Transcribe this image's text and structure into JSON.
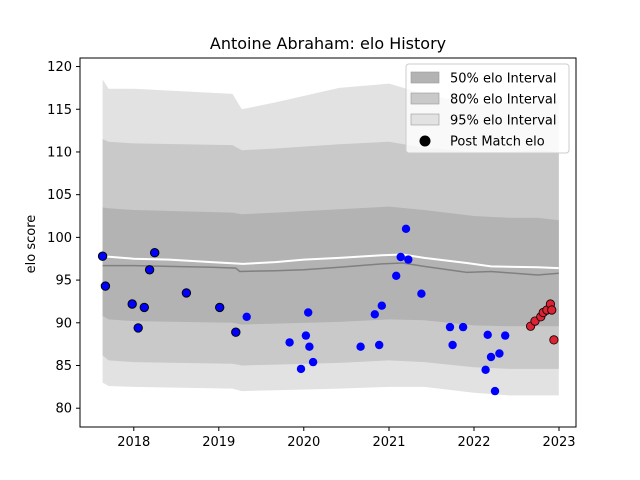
{
  "chart_data": {
    "type": "scatter",
    "title": "Antoine Abraham: elo History",
    "xlabel": "",
    "ylabel": "elo score",
    "xlim": [
      "2017-05-15",
      "2023-03-15"
    ],
    "ylim": [
      77.8,
      121.0
    ],
    "x_ticks": [
      "2018",
      "2019",
      "2020",
      "2021",
      "2022",
      "2023"
    ],
    "x_tick_dates": [
      "2018-01-01",
      "2019-01-01",
      "2020-01-01",
      "2021-01-01",
      "2022-01-01",
      "2023-01-01"
    ],
    "y_ticks": [
      80,
      85,
      90,
      95,
      100,
      105,
      110,
      115,
      120
    ],
    "grid": false,
    "legend": {
      "placement": "top-right",
      "entries": [
        {
          "label": "50% elo Interval",
          "color": "#b3b3b3"
        },
        {
          "label": "80% elo Interval",
          "color": "#c9c9c9"
        },
        {
          "label": "95% elo Interval",
          "color": "#e2e2e2"
        },
        {
          "label": "Post Match elo",
          "color": "#000000"
        }
      ]
    },
    "mean_line": {
      "color": "#ffffff",
      "points": [
        [
          "2017-08-20",
          97.8
        ],
        [
          "2018-01-01",
          97.5
        ],
        [
          "2018-06-01",
          97.4
        ],
        [
          "2018-12-01",
          97.1
        ],
        [
          "2019-04-15",
          96.9
        ],
        [
          "2019-09-01",
          97.1
        ],
        [
          "2020-01-01",
          97.4
        ],
        [
          "2020-06-01",
          97.6
        ],
        [
          "2020-12-01",
          97.9
        ],
        [
          "2021-03-01",
          98.0
        ],
        [
          "2021-06-01",
          97.6
        ],
        [
          "2021-12-01",
          97.0
        ],
        [
          "2022-03-15",
          96.6
        ],
        [
          "2022-10-01",
          96.5
        ],
        [
          "2022-12-31",
          96.4
        ]
      ]
    },
    "median_line": {
      "color": "#808080",
      "points": [
        [
          "2017-08-20",
          96.7
        ],
        [
          "2018-01-01",
          96.7
        ],
        [
          "2018-06-01",
          96.6
        ],
        [
          "2018-12-01",
          96.5
        ],
        [
          "2019-03-15",
          96.4
        ],
        [
          "2019-04-01",
          96.0
        ],
        [
          "2019-09-01",
          96.1
        ],
        [
          "2020-01-01",
          96.2
        ],
        [
          "2020-06-01",
          96.5
        ],
        [
          "2020-12-01",
          96.9
        ],
        [
          "2021-03-01",
          97.0
        ],
        [
          "2021-06-01",
          96.6
        ],
        [
          "2021-12-01",
          95.9
        ],
        [
          "2022-03-15",
          96.0
        ],
        [
          "2022-10-01",
          95.6
        ],
        [
          "2022-12-31",
          95.8
        ]
      ]
    },
    "bands": [
      {
        "name": "95% elo Interval",
        "color": "#e2e2e2",
        "x": [
          "2017-08-20",
          "2017-09-15",
          "2018-01-01",
          "2019-03-01",
          "2019-04-10",
          "2019-09-01",
          "2020-06-01",
          "2021-01-01",
          "2021-06-01",
          "2022-01-01",
          "2022-06-01",
          "2022-10-01",
          "2022-12-31"
        ],
        "upper": [
          118.5,
          117.4,
          117.4,
          116.8,
          115.0,
          115.8,
          117.5,
          118.0,
          116.8,
          115.5,
          115.8,
          116.0,
          116.0
        ],
        "lower": [
          83.0,
          82.6,
          82.5,
          82.3,
          82.0,
          82.1,
          82.3,
          82.5,
          82.5,
          81.8,
          81.5,
          81.5,
          81.5
        ]
      },
      {
        "name": "80% elo Interval",
        "color": "#c9c9c9",
        "x": [
          "2017-08-20",
          "2017-09-15",
          "2018-01-01",
          "2019-03-01",
          "2019-04-10",
          "2019-09-01",
          "2020-06-01",
          "2021-01-01",
          "2021-06-01",
          "2022-01-01",
          "2022-06-01",
          "2022-10-01",
          "2022-12-31"
        ],
        "upper": [
          111.5,
          111.2,
          111.0,
          110.8,
          110.2,
          110.4,
          110.9,
          111.2,
          110.5,
          110.0,
          110.0,
          110.2,
          110.0
        ],
        "lower": [
          86.2,
          85.6,
          85.4,
          85.2,
          85.0,
          85.1,
          85.3,
          85.6,
          85.4,
          84.8,
          84.6,
          84.6,
          84.6
        ]
      },
      {
        "name": "50% elo Interval",
        "color": "#b3b3b3",
        "x": [
          "2017-08-20",
          "2017-09-15",
          "2018-01-01",
          "2019-03-01",
          "2019-04-10",
          "2019-09-01",
          "2020-06-01",
          "2021-01-01",
          "2021-06-01",
          "2022-01-01",
          "2022-06-01",
          "2022-10-01",
          "2022-12-31"
        ],
        "upper": [
          103.5,
          103.4,
          103.2,
          102.9,
          102.7,
          102.9,
          103.3,
          103.6,
          103.2,
          102.5,
          102.3,
          102.3,
          102.0
        ],
        "lower": [
          90.8,
          90.4,
          90.2,
          90.0,
          89.8,
          89.9,
          90.1,
          90.4,
          90.3,
          89.7,
          89.6,
          89.6,
          89.6
        ]
      }
    ],
    "series": [
      {
        "name": "Post Match elo",
        "color": "#0000ff",
        "points": [
          [
            "2017-08-20",
            97.8
          ],
          [
            "2017-09-01",
            94.3
          ],
          [
            "2017-12-25",
            92.2
          ],
          [
            "2018-01-20",
            89.4
          ],
          [
            "2018-02-15",
            91.8
          ],
          [
            "2018-03-10",
            96.2
          ],
          [
            "2018-04-01",
            98.2
          ],
          [
            "2018-08-15",
            93.5
          ],
          [
            "2019-01-05",
            91.8
          ],
          [
            "2019-03-15",
            88.9
          ],
          [
            "2019-05-01",
            90.7
          ],
          [
            "2019-11-01",
            87.7
          ],
          [
            "2019-12-20",
            84.6
          ],
          [
            "2020-01-10",
            88.5
          ],
          [
            "2020-01-20",
            91.2
          ],
          [
            "2020-01-25",
            87.2
          ],
          [
            "2020-02-10",
            85.4
          ],
          [
            "2020-09-01",
            87.2
          ],
          [
            "2020-11-01",
            91.0
          ],
          [
            "2020-11-20",
            87.4
          ],
          [
            "2020-12-01",
            92.0
          ],
          [
            "2021-02-01",
            95.5
          ],
          [
            "2021-02-20",
            97.7
          ],
          [
            "2021-03-15",
            101.0
          ],
          [
            "2021-03-25",
            97.4
          ],
          [
            "2021-05-20",
            93.4
          ],
          [
            "2021-09-20",
            89.5
          ],
          [
            "2021-10-01",
            87.4
          ],
          [
            "2021-11-15",
            89.5
          ],
          [
            "2022-02-20",
            84.5
          ],
          [
            "2022-03-01",
            88.6
          ],
          [
            "2022-03-15",
            86.0
          ],
          [
            "2022-04-01",
            82.0
          ],
          [
            "2022-04-20",
            86.4
          ],
          [
            "2022-05-15",
            88.5
          ]
        ]
      },
      {
        "name": "Post Match elo",
        "color": "#dd2233",
        "points": [
          [
            "2022-09-01",
            89.6
          ],
          [
            "2022-09-20",
            90.2
          ],
          [
            "2022-10-15",
            90.7
          ],
          [
            "2022-10-25",
            91.2
          ],
          [
            "2022-11-10",
            91.5
          ],
          [
            "2022-11-25",
            92.2
          ],
          [
            "2022-12-01",
            91.5
          ],
          [
            "2022-12-10",
            88.0
          ]
        ]
      }
    ]
  }
}
